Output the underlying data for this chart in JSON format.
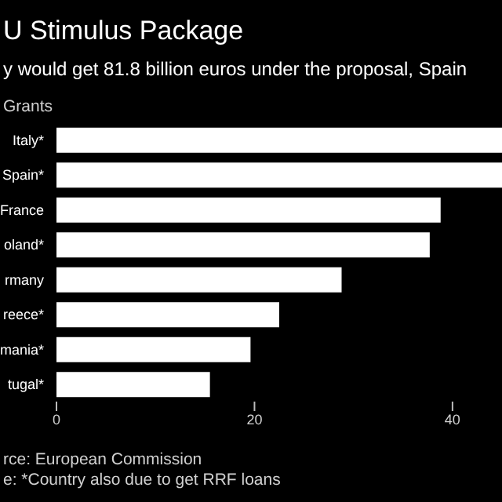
{
  "chart_data": {
    "type": "bar",
    "orientation": "horizontal",
    "title": "U Stimulus Package",
    "subtitle": "y would get 81.8 billion euros under the proposal, Spain",
    "categories": [
      "Italy*",
      "Spain*",
      "France",
      "oland*",
      "rmany",
      "reece*",
      "mania*",
      "tugal*"
    ],
    "series": [
      {
        "color": "#ffffff",
        "values": [
          45,
          45,
          38.8,
          37.7,
          28.8,
          22.5,
          19.6,
          15.5
        ]
      }
    ],
    "xlim": [
      0,
      45
    ],
    "xticks": [
      0,
      20,
      40
    ],
    "grid": false,
    "annotations": [
      "Grants",
      "rce: European Commission",
      "e: *Country also due to get RRF loans"
    ]
  }
}
